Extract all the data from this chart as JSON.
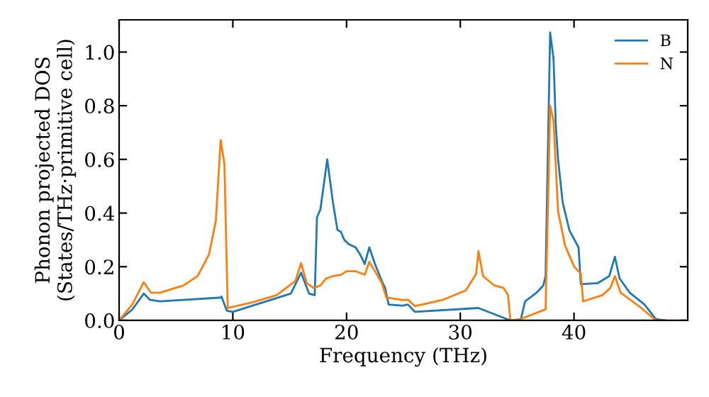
{
  "chart_data": {
    "type": "line",
    "xlabel": "Frequency (THz)",
    "ylabel": "Phonon projected DOS\n(States/THz·primitive cell)",
    "xlim": [
      0,
      50
    ],
    "ylim": [
      0,
      1.12
    ],
    "xticks": [
      0,
      10,
      20,
      30,
      40
    ],
    "yticks": [
      {
        "value": 0,
        "label": "0.0"
      },
      {
        "value": 0.2,
        "label": "0.2"
      },
      {
        "value": 0.4,
        "label": "0.4"
      },
      {
        "value": 0.6,
        "label": "0.6"
      },
      {
        "value": 0.8,
        "label": "0.8"
      },
      {
        "value": 1.0,
        "label": "1.0"
      }
    ],
    "grid": false,
    "legend": "top right",
    "marker": "none",
    "line_style": "solid",
    "series": [
      {
        "name": "B",
        "color": "#1f77b4",
        "x": [
          0,
          1.15,
          2.17,
          2.7,
          3.6,
          8.93,
          9.0,
          9.47,
          10,
          15.1,
          16.0,
          16.7,
          17.2,
          17.4,
          17.7,
          18.3,
          18.8,
          19.2,
          19.5,
          19.8,
          20.2,
          20.8,
          21.2,
          21.6,
          22.0,
          22.5,
          23.1,
          23.4,
          23.7,
          24.9,
          25.4,
          26.0,
          31.6,
          34.4,
          35.3,
          35.7,
          36.7,
          37.3,
          37.5,
          37.9,
          38.2,
          38.4,
          38.6,
          39.0,
          39.6,
          40.4,
          40.6,
          42.1,
          43.1,
          43.6,
          44.0,
          44.9,
          46.2,
          47.2,
          48
        ],
        "values": [
          0,
          0.04,
          0.1,
          0.077,
          0.071,
          0.085,
          0.089,
          0.036,
          0.032,
          0.1,
          0.178,
          0.1,
          0.094,
          0.384,
          0.414,
          0.6,
          0.44,
          0.337,
          0.33,
          0.3,
          0.284,
          0.272,
          0.245,
          0.21,
          0.272,
          0.21,
          0.147,
          0.12,
          0.059,
          0.055,
          0.059,
          0.032,
          0.046,
          0,
          0,
          0.071,
          0.103,
          0.13,
          0.165,
          1.073,
          0.975,
          0.726,
          0.6,
          0.44,
          0.335,
          0.272,
          0.135,
          0.139,
          0.165,
          0.237,
          0.157,
          0.103,
          0.059,
          0.005,
          0
        ]
      },
      {
        "name": "N",
        "color": "#ff7f0e",
        "x": [
          0,
          1.15,
          2.17,
          2.8,
          3.6,
          5.66,
          6.9,
          7.9,
          8.5,
          8.93,
          9.26,
          9.55,
          11.8,
          13.85,
          15.5,
          16.0,
          16.5,
          17.1,
          17.7,
          18.2,
          18.8,
          19.5,
          20.0,
          20.8,
          21.6,
          22.0,
          22.5,
          23.1,
          23.5,
          24.9,
          25.4,
          26.0,
          28.5,
          30.5,
          31.4,
          31.6,
          32.0,
          33.0,
          33.8,
          34.2,
          34.4,
          35.3,
          37.5,
          37.7,
          37.9,
          38.2,
          38.6,
          39.2,
          40.0,
          40.6,
          40.8,
          42.5,
          43.2,
          43.6,
          44.1,
          45.8,
          47.2,
          48
        ],
        "values": [
          0,
          0.059,
          0.142,
          0.103,
          0.103,
          0.13,
          0.165,
          0.245,
          0.37,
          0.672,
          0.583,
          0.046,
          0.068,
          0.094,
          0.147,
          0.213,
          0.139,
          0.121,
          0.13,
          0.156,
          0.165,
          0.17,
          0.183,
          0.183,
          0.17,
          0.218,
          0.183,
          0.139,
          0.085,
          0.076,
          0.077,
          0.053,
          0.077,
          0.112,
          0.174,
          0.258,
          0.165,
          0.13,
          0.121,
          0.094,
          0,
          0.005,
          0.041,
          0.406,
          0.8,
          0.744,
          0.406,
          0.281,
          0.201,
          0.174,
          0.071,
          0.094,
          0.121,
          0.165,
          0.103,
          0.05,
          0,
          0
        ]
      }
    ]
  }
}
